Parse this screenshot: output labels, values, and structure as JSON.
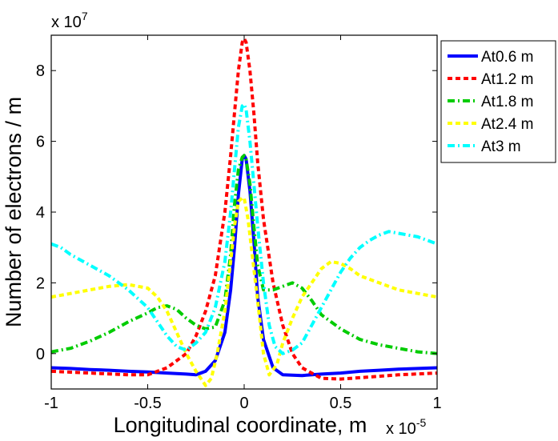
{
  "chart_data": {
    "type": "line",
    "xlabel": "Longitudinal coordinate, m",
    "ylabel": "Number of electrons / m",
    "x_exponent_label": "x 10",
    "x_exponent_power": "-5",
    "y_exponent_label": "x 10",
    "y_exponent_power": "7",
    "xlim": [
      -1,
      1
    ],
    "ylim": [
      -1,
      9
    ],
    "x_ticks": [
      -1,
      -0.5,
      0,
      0.5,
      1
    ],
    "x_tick_labels": [
      "-1",
      "-0.5",
      "0",
      "0.5",
      "1"
    ],
    "y_ticks": [
      0,
      2,
      4,
      6,
      8
    ],
    "y_tick_labels": [
      "0",
      "2",
      "4",
      "6",
      "8"
    ],
    "grid": false,
    "legend_position": "outside-top-right",
    "series": [
      {
        "name": "At0.6 m",
        "color": "#0000ff",
        "style": "solid",
        "points": [
          [
            -1,
            -0.4
          ],
          [
            -0.9,
            -0.42
          ],
          [
            -0.8,
            -0.45
          ],
          [
            -0.7,
            -0.47
          ],
          [
            -0.6,
            -0.5
          ],
          [
            -0.5,
            -0.52
          ],
          [
            -0.4,
            -0.55
          ],
          [
            -0.3,
            -0.58
          ],
          [
            -0.25,
            -0.6
          ],
          [
            -0.2,
            -0.5
          ],
          [
            -0.15,
            -0.2
          ],
          [
            -0.1,
            0.6
          ],
          [
            -0.07,
            1.8
          ],
          [
            -0.05,
            3.0
          ],
          [
            -0.03,
            4.5
          ],
          [
            -0.01,
            5.5
          ],
          [
            0,
            5.6
          ],
          [
            0.01,
            5.5
          ],
          [
            0.03,
            4.6
          ],
          [
            0.05,
            3.2
          ],
          [
            0.07,
            1.6
          ],
          [
            0.1,
            0.4
          ],
          [
            0.15,
            -0.4
          ],
          [
            0.2,
            -0.6
          ],
          [
            0.3,
            -0.62
          ],
          [
            0.4,
            -0.58
          ],
          [
            0.5,
            -0.55
          ],
          [
            0.6,
            -0.5
          ],
          [
            0.7,
            -0.47
          ],
          [
            0.8,
            -0.44
          ],
          [
            0.9,
            -0.42
          ],
          [
            1,
            -0.4
          ]
        ]
      },
      {
        "name": "At1.2 m",
        "color": "#ff0000",
        "style": "dashed",
        "points": [
          [
            -1,
            -0.5
          ],
          [
            -0.8,
            -0.55
          ],
          [
            -0.6,
            -0.6
          ],
          [
            -0.5,
            -0.6
          ],
          [
            -0.4,
            -0.4
          ],
          [
            -0.3,
            0.0
          ],
          [
            -0.25,
            0.5
          ],
          [
            -0.2,
            1.2
          ],
          [
            -0.15,
            2.2
          ],
          [
            -0.1,
            4.0
          ],
          [
            -0.07,
            5.6
          ],
          [
            -0.05,
            6.8
          ],
          [
            -0.03,
            8.0
          ],
          [
            -0.01,
            8.8
          ],
          [
            0,
            8.9
          ],
          [
            0.01,
            8.8
          ],
          [
            0.03,
            8.0
          ],
          [
            0.05,
            6.8
          ],
          [
            0.07,
            5.4
          ],
          [
            0.1,
            3.8
          ],
          [
            0.15,
            2.0
          ],
          [
            0.2,
            0.8
          ],
          [
            0.25,
            0.0
          ],
          [
            0.3,
            -0.4
          ],
          [
            0.4,
            -0.7
          ],
          [
            0.5,
            -0.72
          ],
          [
            0.6,
            -0.68
          ],
          [
            0.8,
            -0.6
          ],
          [
            1,
            -0.55
          ]
        ]
      },
      {
        "name": "At1.8 m",
        "color": "#00cc00",
        "style": "dashdot",
        "points": [
          [
            -1,
            0.05
          ],
          [
            -0.9,
            0.15
          ],
          [
            -0.8,
            0.35
          ],
          [
            -0.7,
            0.6
          ],
          [
            -0.6,
            0.9
          ],
          [
            -0.5,
            1.15
          ],
          [
            -0.45,
            1.3
          ],
          [
            -0.4,
            1.35
          ],
          [
            -0.35,
            1.25
          ],
          [
            -0.3,
            1.0
          ],
          [
            -0.25,
            0.8
          ],
          [
            -0.2,
            0.7
          ],
          [
            -0.15,
            0.75
          ],
          [
            -0.1,
            1.5
          ],
          [
            -0.07,
            2.8
          ],
          [
            -0.05,
            4.2
          ],
          [
            -0.03,
            5.2
          ],
          [
            -0.01,
            5.55
          ],
          [
            0,
            5.6
          ],
          [
            0.01,
            5.5
          ],
          [
            0.03,
            4.8
          ],
          [
            0.05,
            3.6
          ],
          [
            0.07,
            2.5
          ],
          [
            0.1,
            1.8
          ],
          [
            0.15,
            1.8
          ],
          [
            0.2,
            1.9
          ],
          [
            0.25,
            2.0
          ],
          [
            0.3,
            1.85
          ],
          [
            0.35,
            1.5
          ],
          [
            0.4,
            1.1
          ],
          [
            0.5,
            0.7
          ],
          [
            0.6,
            0.4
          ],
          [
            0.7,
            0.25
          ],
          [
            0.8,
            0.15
          ],
          [
            0.9,
            0.05
          ],
          [
            1,
            0.0
          ]
        ]
      },
      {
        "name": "At2.4 m",
        "color": "#ffff00",
        "style": "dashed",
        "points": [
          [
            -1,
            1.6
          ],
          [
            -0.9,
            1.7
          ],
          [
            -0.8,
            1.8
          ],
          [
            -0.7,
            1.9
          ],
          [
            -0.6,
            1.95
          ],
          [
            -0.5,
            1.85
          ],
          [
            -0.45,
            1.6
          ],
          [
            -0.4,
            1.2
          ],
          [
            -0.35,
            0.6
          ],
          [
            -0.3,
            0.0
          ],
          [
            -0.25,
            -0.5
          ],
          [
            -0.2,
            -0.9
          ],
          [
            -0.17,
            -0.7
          ],
          [
            -0.14,
            0.0
          ],
          [
            -0.1,
            1.2
          ],
          [
            -0.07,
            2.6
          ],
          [
            -0.05,
            3.6
          ],
          [
            -0.03,
            4.3
          ],
          [
            -0.01,
            4.4
          ],
          [
            0,
            4.4
          ],
          [
            0.02,
            3.8
          ],
          [
            0.05,
            2.4
          ],
          [
            0.08,
            1.0
          ],
          [
            0.1,
            0.0
          ],
          [
            0.13,
            -0.6
          ],
          [
            0.17,
            -0.3
          ],
          [
            0.2,
            0.3
          ],
          [
            0.25,
            1.0
          ],
          [
            0.3,
            1.6
          ],
          [
            0.35,
            2.0
          ],
          [
            0.4,
            2.4
          ],
          [
            0.45,
            2.6
          ],
          [
            0.5,
            2.55
          ],
          [
            0.55,
            2.4
          ],
          [
            0.6,
            2.2
          ],
          [
            0.7,
            2.0
          ],
          [
            0.8,
            1.8
          ],
          [
            0.9,
            1.7
          ],
          [
            1,
            1.6
          ]
        ]
      },
      {
        "name": "At3 m",
        "color": "#00ffff",
        "style": "dashdot",
        "points": [
          [
            -1,
            3.1
          ],
          [
            -0.95,
            3.0
          ],
          [
            -0.9,
            2.8
          ],
          [
            -0.8,
            2.5
          ],
          [
            -0.7,
            2.2
          ],
          [
            -0.6,
            1.8
          ],
          [
            -0.5,
            1.3
          ],
          [
            -0.45,
            0.9
          ],
          [
            -0.4,
            0.5
          ],
          [
            -0.35,
            0.2
          ],
          [
            -0.3,
            0.1
          ],
          [
            -0.25,
            0.3
          ],
          [
            -0.2,
            0.6
          ],
          [
            -0.15,
            1.3
          ],
          [
            -0.1,
            2.6
          ],
          [
            -0.07,
            4.0
          ],
          [
            -0.05,
            5.2
          ],
          [
            -0.03,
            6.4
          ],
          [
            -0.01,
            7.0
          ],
          [
            0,
            7.05
          ],
          [
            0.01,
            6.9
          ],
          [
            0.03,
            6.0
          ],
          [
            0.05,
            4.8
          ],
          [
            0.07,
            3.6
          ],
          [
            0.1,
            2.0
          ],
          [
            0.13,
            0.8
          ],
          [
            0.16,
            0.2
          ],
          [
            0.2,
            0.0
          ],
          [
            0.25,
            0.1
          ],
          [
            0.3,
            0.3
          ],
          [
            0.35,
            0.8
          ],
          [
            0.4,
            1.3
          ],
          [
            0.45,
            1.8
          ],
          [
            0.5,
            2.3
          ],
          [
            0.55,
            2.7
          ],
          [
            0.6,
            3.0
          ],
          [
            0.65,
            3.2
          ],
          [
            0.7,
            3.35
          ],
          [
            0.75,
            3.45
          ],
          [
            0.8,
            3.4
          ],
          [
            0.9,
            3.3
          ],
          [
            1,
            3.1
          ]
        ]
      }
    ]
  }
}
